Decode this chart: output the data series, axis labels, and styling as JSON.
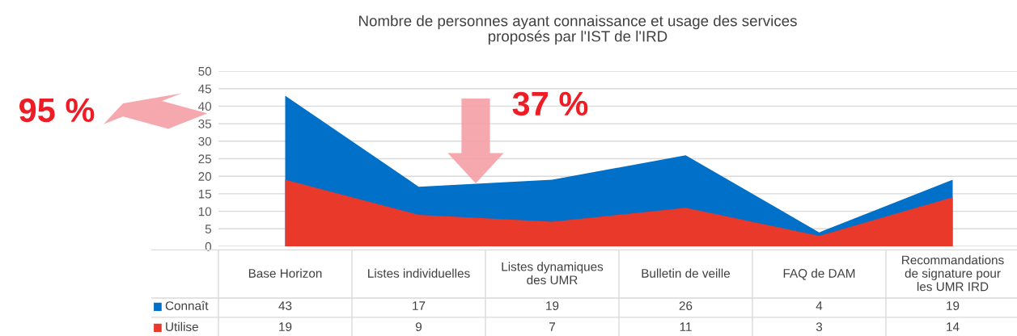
{
  "chart_data": {
    "type": "area",
    "title": "Nombre de personnes ayant connaissance et usage des services\nproposés par l'IST de l'IRD",
    "categories": [
      "Base Horizon",
      "Listes individuelles",
      "Listes dynamiques\ndes UMR",
      "Bulletin de veille",
      "FAQ de DAM",
      "Recommandations\nde signature pour\nles UMR IRD"
    ],
    "series": [
      {
        "name": "Connaît",
        "color": "#0070c8",
        "values": [
          43,
          17,
          19,
          26,
          4,
          19
        ]
      },
      {
        "name": "Utilise",
        "color": "#e8392a",
        "values": [
          19,
          9,
          7,
          11,
          3,
          14
        ]
      }
    ],
    "ylim": [
      0,
      50
    ],
    "yticks": [
      0,
      5,
      10,
      15,
      20,
      25,
      30,
      35,
      40,
      45,
      50
    ],
    "grid": "y",
    "data_labels": true,
    "legend": "bottom",
    "annotations": [
      "95 %",
      {
        "text": "37 %",
        "y": 18
      }
    ]
  }
}
